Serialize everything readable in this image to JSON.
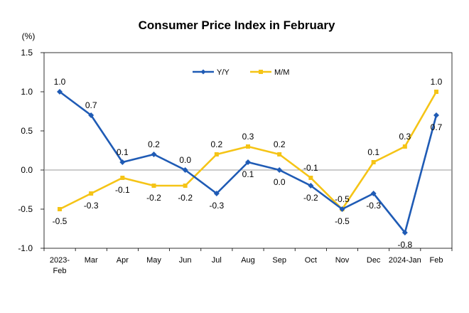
{
  "chart_data": {
    "type": "line",
    "title": "Consumer Price Index in February",
    "ylabel": "(%)",
    "xlabel": "",
    "ylim": [
      -1.0,
      1.5
    ],
    "yticks": [
      "1.5",
      "1.0",
      "0.5",
      "0.0",
      "-0.5",
      "-1.0"
    ],
    "ytick_values": [
      1.5,
      1.0,
      0.5,
      0.0,
      -0.5,
      -1.0
    ],
    "categories": [
      [
        "2023-",
        "Feb"
      ],
      [
        "Mar"
      ],
      [
        "Apr"
      ],
      [
        "May"
      ],
      [
        "Jun"
      ],
      [
        "Jul"
      ],
      [
        "Aug"
      ],
      [
        "Sep"
      ],
      [
        "Oct"
      ],
      [
        "Nov"
      ],
      [
        "Dec"
      ],
      [
        "2024-Jan"
      ],
      [
        "Feb"
      ]
    ],
    "legend_position": "top-center",
    "grid": false,
    "series": [
      {
        "name": "Y/Y",
        "color": "#1F5BB5",
        "marker": "diamond",
        "values": [
          1.0,
          0.7,
          0.1,
          0.2,
          0.0,
          -0.3,
          0.1,
          0.0,
          -0.2,
          -0.5,
          -0.3,
          -0.8,
          0.7
        ],
        "labels": [
          "1.0",
          "0.7",
          "0.1",
          "0.2",
          "0.0",
          "-0.3",
          "0.1",
          "0.0",
          "-0.2",
          "-0.5",
          "-0.3",
          "-0.8",
          "0.7"
        ]
      },
      {
        "name": "M/M",
        "color": "#F5C416",
        "marker": "square",
        "values": [
          -0.5,
          -0.3,
          -0.1,
          -0.2,
          -0.2,
          0.2,
          0.3,
          0.2,
          -0.1,
          -0.5,
          0.1,
          0.3,
          1.0
        ],
        "labels": [
          "-0.5",
          "-0.3",
          "-0.1",
          "-0.2",
          "-0.2",
          "0.2",
          "0.3",
          "0.2",
          "-0.1",
          "-0.5",
          "0.1",
          "0.3",
          "1.0"
        ]
      }
    ]
  }
}
